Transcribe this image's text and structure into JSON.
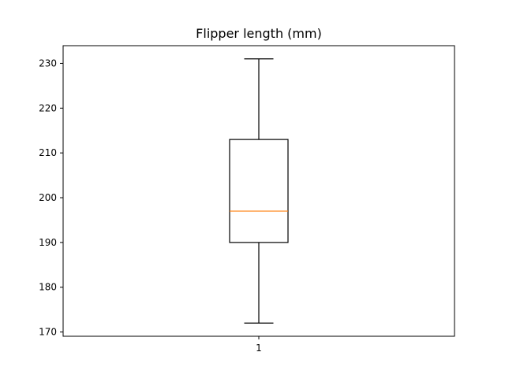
{
  "chart_data": {
    "type": "boxplot",
    "title": "Flipper length (mm)",
    "xlabel": "",
    "ylabel": "",
    "categories": [
      "1"
    ],
    "boxes": [
      {
        "label": "1",
        "whisker_low": 172,
        "q1": 190,
        "median": 197,
        "q3": 213,
        "whisker_high": 231
      }
    ],
    "ylim": [
      169.05,
      233.95
    ],
    "yticks": [
      170,
      180,
      190,
      200,
      210,
      220,
      230
    ],
    "grid": false,
    "colors": {
      "box": "#000000",
      "median": "#ff7f0e",
      "whisker": "#000000"
    }
  }
}
